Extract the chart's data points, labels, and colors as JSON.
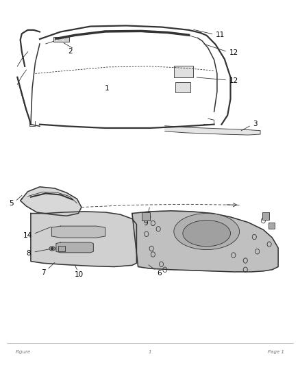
{
  "bg_color": "#ffffff",
  "line_color": "#333333",
  "text_color": "#000000",
  "fig_width": 4.38,
  "fig_height": 5.33,
  "dpi": 100,
  "footer_left": "Figure",
  "footer_center": "1",
  "footer_right": "Page 1"
}
